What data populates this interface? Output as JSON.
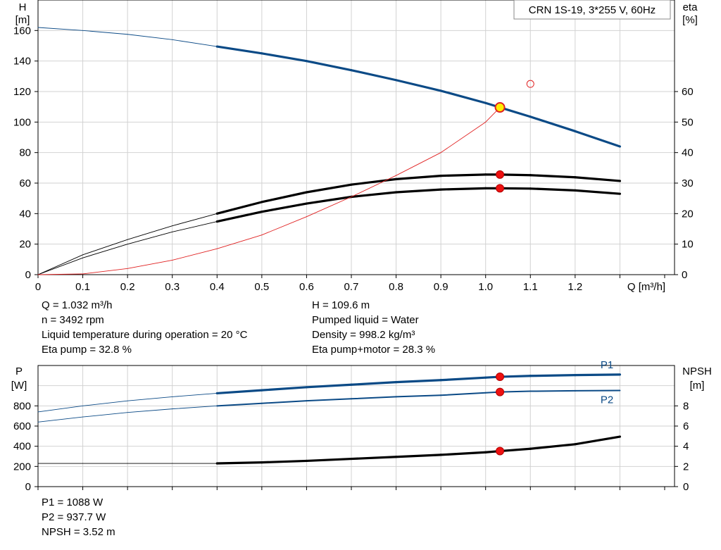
{
  "chart_data": [
    {
      "type": "line",
      "title": "CRN 1S-19, 3*255 V, 60Hz",
      "xlabel": "Q [m³/h]",
      "ylabel_left": [
        "H",
        "[m]"
      ],
      "ylabel_right": [
        "eta",
        "[%]"
      ],
      "xlim": [
        0,
        1.4
      ],
      "ylim_left": [
        0,
        180
      ],
      "ylim_right": [
        0,
        90
      ],
      "x_ticks": [
        "0",
        "0.1",
        "0.2",
        "0.3",
        "0.4",
        "0.5",
        "0.6",
        "0.7",
        "0.8",
        "0.9",
        "1.0",
        "1.1",
        "1.2"
      ],
      "y_ticks_left": [
        "0",
        "20",
        "40",
        "60",
        "80",
        "100",
        "120",
        "140",
        "160"
      ],
      "y_ticks_right": [
        "0",
        "10",
        "20",
        "30",
        "40",
        "50",
        "60"
      ],
      "grid": true,
      "series": [
        {
          "axis": "left",
          "color": "#0b4a86",
          "x": [
            0,
            0.1,
            0.2,
            0.3,
            0.4,
            0.5,
            0.6,
            0.7,
            0.8,
            0.9,
            1.0,
            1.032,
            1.1,
            1.2,
            1.3
          ],
          "values": [
            162,
            160,
            157.5,
            154,
            149.5,
            145,
            140,
            134,
            127.5,
            120.5,
            112.5,
            109.6,
            103.5,
            94,
            84
          ]
        },
        {
          "axis": "right",
          "color": "#000000",
          "x": [
            0,
            0.1,
            0.2,
            0.3,
            0.4,
            0.5,
            0.6,
            0.7,
            0.8,
            0.9,
            1.0,
            1.032,
            1.1,
            1.2,
            1.3
          ],
          "values": [
            0,
            6.5,
            11.5,
            16,
            20,
            23.8,
            27,
            29.5,
            31.3,
            32.4,
            32.8,
            32.8,
            32.6,
            31.9,
            30.7
          ]
        },
        {
          "axis": "right",
          "color": "#000000",
          "x": [
            0,
            0.1,
            0.2,
            0.3,
            0.4,
            0.5,
            0.6,
            0.7,
            0.8,
            0.9,
            1.0,
            1.032,
            1.1,
            1.2,
            1.3
          ],
          "values": [
            0,
            5.5,
            10,
            14,
            17.4,
            20.6,
            23.3,
            25.5,
            27,
            27.9,
            28.3,
            28.3,
            28.2,
            27.6,
            26.5
          ]
        },
        {
          "axis": "left",
          "color": "#e02020",
          "x": [
            0,
            0.1,
            0.2,
            0.3,
            0.4,
            0.5,
            0.6,
            0.7,
            0.8,
            0.9,
            1.0,
            1.032
          ],
          "values": [
            0,
            0.5,
            4,
            9.5,
            17,
            26,
            38,
            51,
            65,
            80,
            100,
            109.6
          ]
        }
      ],
      "operating_point": {
        "x": 1.032,
        "H": 109.6,
        "eta_pump": 32.8,
        "eta_pump_motor": 28.3
      },
      "secondary_point": {
        "x": 1.1,
        "H": 125
      }
    },
    {
      "type": "line",
      "xlabel": "",
      "ylabel_left": [
        "P",
        "[W]"
      ],
      "ylabel_right": [
        "NPSH",
        "[m]"
      ],
      "xlim": [
        0,
        1.4
      ],
      "ylim_left": [
        0,
        1200
      ],
      "ylim_right": [
        0,
        12
      ],
      "y_ticks_left": [
        "0",
        "200",
        "400",
        "600",
        "800"
      ],
      "y_ticks_right": [
        "0",
        "2",
        "4",
        "6",
        "8"
      ],
      "grid": true,
      "series": [
        {
          "name": "P1",
          "axis": "left",
          "color": "#0b4a86",
          "x": [
            0,
            0.1,
            0.2,
            0.3,
            0.4,
            0.5,
            0.6,
            0.7,
            0.8,
            0.9,
            1.0,
            1.032,
            1.1,
            1.2,
            1.3
          ],
          "values": [
            740,
            800,
            850,
            890,
            925,
            955,
            985,
            1010,
            1035,
            1055,
            1080,
            1088,
            1097,
            1105,
            1110
          ]
        },
        {
          "name": "P2",
          "axis": "left",
          "color": "#0b4a86",
          "x": [
            0,
            0.1,
            0.2,
            0.3,
            0.4,
            0.5,
            0.6,
            0.7,
            0.8,
            0.9,
            1.0,
            1.032,
            1.1,
            1.2,
            1.3
          ],
          "values": [
            640,
            690,
            735,
            770,
            800,
            825,
            850,
            870,
            890,
            905,
            930,
            937.7,
            945,
            950,
            952
          ]
        },
        {
          "axis": "right",
          "color": "#000000",
          "x": [
            0,
            0.1,
            0.2,
            0.3,
            0.4,
            0.5,
            0.6,
            0.7,
            0.8,
            0.9,
            1.0,
            1.032,
            1.1,
            1.2,
            1.3
          ],
          "values": [
            2.3,
            2.3,
            2.3,
            2.3,
            2.3,
            2.4,
            2.55,
            2.75,
            2.95,
            3.15,
            3.4,
            3.52,
            3.75,
            4.2,
            4.95
          ]
        }
      ],
      "operating_point": {
        "x": 1.032,
        "P1": 1088,
        "P2": 937.7,
        "NPSH": 3.52
      }
    }
  ],
  "readout_top": {
    "left": [
      "Q = 1.032 m³/h",
      "n = 3492 rpm",
      "Liquid temperature during operation = 20 °C",
      "Eta pump = 32.8 %"
    ],
    "right": [
      "H = 109.6 m",
      "Pumped liquid = Water",
      "Density = 998.2 kg/m³",
      "Eta pump+motor = 28.3 %"
    ]
  },
  "readout_bottom": [
    "P1 = 1088 W",
    "P2 = 937.7 W",
    "NPSH = 3.52 m"
  ]
}
